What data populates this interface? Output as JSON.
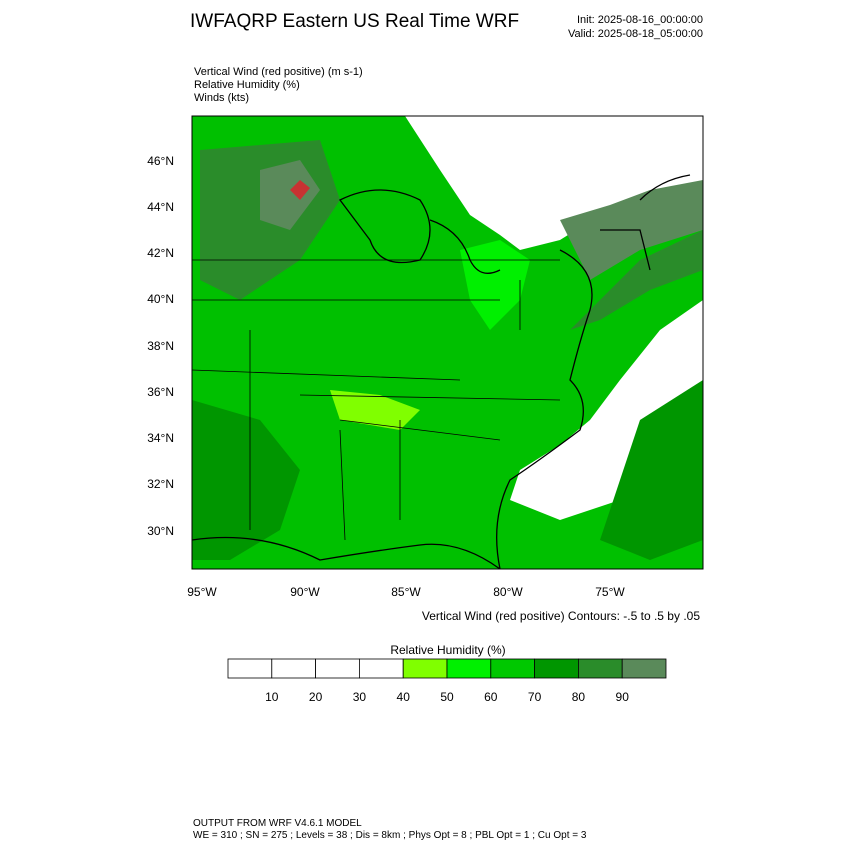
{
  "header": {
    "title": "IWFAQRP Eastern US Real Time WRF",
    "init": "Init: 2025-08-16_00:00:00",
    "valid": "Valid: 2025-08-18_05:00:00"
  },
  "fields": [
    "Vertical Wind (red positive)   (m s-1)",
    "Relative Humidity   (%)",
    "Winds   (kts)"
  ],
  "map": {
    "lat_labels": [
      "46°N",
      "44°N",
      "42°N",
      "40°N",
      "38°N",
      "36°N",
      "34°N",
      "32°N",
      "30°N"
    ],
    "lon_labels": [
      "95°W",
      "90°W",
      "85°W",
      "80°W",
      "75°W"
    ],
    "contour_note": "Vertical Wind (red positive) Contours: -.5 to .5 by .05"
  },
  "colorbar": {
    "title": "Relative Humidity   (%)",
    "colors": [
      "#ffffff",
      "#ffffff",
      "#ffffff",
      "#ffffff",
      "#80ff00",
      "#00f000",
      "#00c800",
      "#009600",
      "#2a8c2a",
      "#5a8a5a"
    ],
    "labels": [
      10,
      20,
      30,
      40,
      50,
      60,
      70,
      80,
      90
    ]
  },
  "footer": [
    "OUTPUT FROM WRF V4.6.1 MODEL",
    "WE = 310 ; SN = 275 ; Levels = 38 ; Dis = 8km ; Phys Opt = 8 ; PBL Opt = 1 ; Cu Opt = 3"
  ]
}
